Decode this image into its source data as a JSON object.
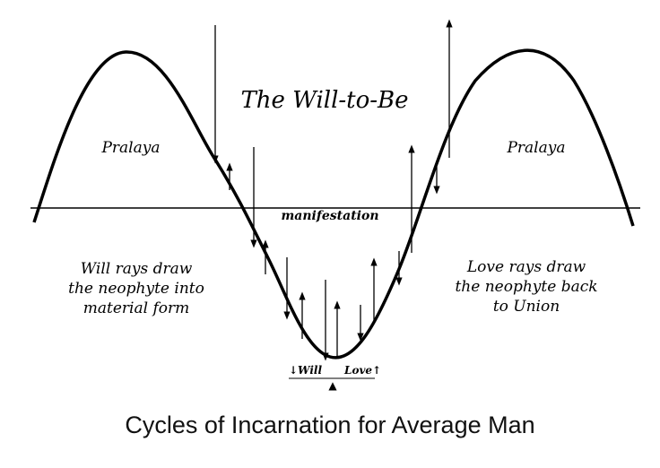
{
  "diagram": {
    "title": "The Will-to-Be",
    "left_peak_label": "Pralaya",
    "right_peak_label": "Pralaya",
    "axis_label": "manifestation",
    "left_text": [
      "Will rays draw",
      "the neophyte into",
      "material form"
    ],
    "right_text": [
      "Love rays draw",
      "the neophyte back",
      "to Union"
    ],
    "bottom_left_label": "↓Will",
    "bottom_right_label": "Love↑",
    "pointer_glyph": "▲",
    "caption": "Cycles of Incarnation for Average Man"
  },
  "colors": {
    "ink": "#000000",
    "caption": "#111111",
    "background": "#ffffff"
  }
}
